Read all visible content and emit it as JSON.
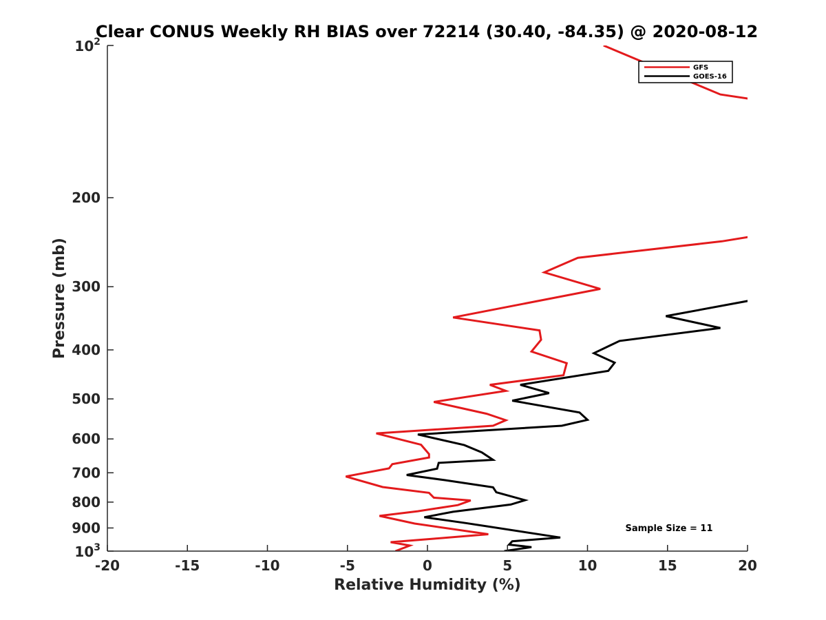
{
  "chart_data": {
    "type": "line",
    "title": "Clear CONUS Weekly RH BIAS over 72214 (30.40, -84.35) @ 2020-08-12",
    "xlabel": "Relative Humidity (%)",
    "ylabel": "Pressure (mb)",
    "xlim": [
      -20,
      20
    ],
    "ylim": [
      100,
      1000
    ],
    "yscale": "log",
    "y_reversed": true,
    "xticks": [
      -20,
      -15,
      -10,
      -5,
      0,
      5,
      10,
      15,
      20
    ],
    "xtick_labels": [
      "-20",
      "-15",
      "-10",
      "-5",
      "0",
      "5",
      "10",
      "15",
      "20"
    ],
    "yticks": [
      200,
      300,
      400,
      500,
      600,
      700,
      800,
      900
    ],
    "ytick_labels": [
      "200",
      "300",
      "400",
      "500",
      "600",
      "700",
      "800",
      "900"
    ],
    "ytick_top": {
      "base": "10",
      "exp": "2"
    },
    "ytick_bottom": {
      "base": "10",
      "exp": "3"
    },
    "grid": false,
    "legend_position": "top-right",
    "annotation": "Sample Size = 11",
    "series": [
      {
        "name": "GFS",
        "color": "#e31a1c",
        "points": [
          [
            11.0,
            100
          ],
          [
            18.3,
            125
          ],
          [
            20.5,
            128
          ],
          [
            20.5,
            238
          ],
          [
            18.4,
            244
          ],
          [
            9.4,
            263
          ],
          [
            7.3,
            281
          ],
          [
            10.8,
            303
          ],
          [
            1.6,
            345
          ],
          [
            7.0,
            366
          ],
          [
            7.1,
            382
          ],
          [
            6.5,
            403
          ],
          [
            8.7,
            425
          ],
          [
            8.5,
            449
          ],
          [
            3.9,
            469
          ],
          [
            4.9,
            482
          ],
          [
            0.4,
            507
          ],
          [
            3.7,
            535
          ],
          [
            4.9,
            551
          ],
          [
            4.1,
            565
          ],
          [
            -3.2,
            585
          ],
          [
            -0.4,
            616
          ],
          [
            0.1,
            643
          ],
          [
            0.1,
            653
          ],
          [
            -2.2,
            673
          ],
          [
            -2.4,
            686
          ],
          [
            -5.1,
            712
          ],
          [
            -2.8,
            747
          ],
          [
            0.1,
            767
          ],
          [
            0.4,
            784
          ],
          [
            2.7,
            794
          ],
          [
            1.9,
            811
          ],
          [
            -0.6,
            834
          ],
          [
            -3.0,
            852
          ],
          [
            -0.8,
            882
          ],
          [
            3.8,
            926
          ],
          [
            0.4,
            945
          ],
          [
            -2.3,
            960
          ],
          [
            -1.1,
            975
          ],
          [
            -2.0,
            1000
          ]
        ]
      },
      {
        "name": "GOES-16",
        "color": "#000000",
        "points": [
          [
            20.5,
            318
          ],
          [
            14.9,
            343
          ],
          [
            18.3,
            362
          ],
          [
            12.0,
            384
          ],
          [
            10.4,
            406
          ],
          [
            11.7,
            424
          ],
          [
            11.3,
            440
          ],
          [
            5.8,
            469
          ],
          [
            7.6,
            487
          ],
          [
            5.3,
            504
          ],
          [
            9.5,
            532
          ],
          [
            10.0,
            550
          ],
          [
            8.4,
            565
          ],
          [
            -0.6,
            588
          ],
          [
            2.3,
            617
          ],
          [
            3.4,
            638
          ],
          [
            4.1,
            660
          ],
          [
            0.7,
            669
          ],
          [
            0.6,
            687
          ],
          [
            -1.3,
            707
          ],
          [
            1.1,
            724
          ],
          [
            4.1,
            748
          ],
          [
            4.3,
            765
          ],
          [
            6.1,
            793
          ],
          [
            5.2,
            809
          ],
          [
            1.6,
            836
          ],
          [
            -0.2,
            857
          ],
          [
            2.4,
            880
          ],
          [
            8.3,
            940
          ],
          [
            5.3,
            956
          ],
          [
            5.1,
            971
          ],
          [
            6.5,
            982
          ],
          [
            4.8,
            1000
          ]
        ]
      }
    ]
  }
}
